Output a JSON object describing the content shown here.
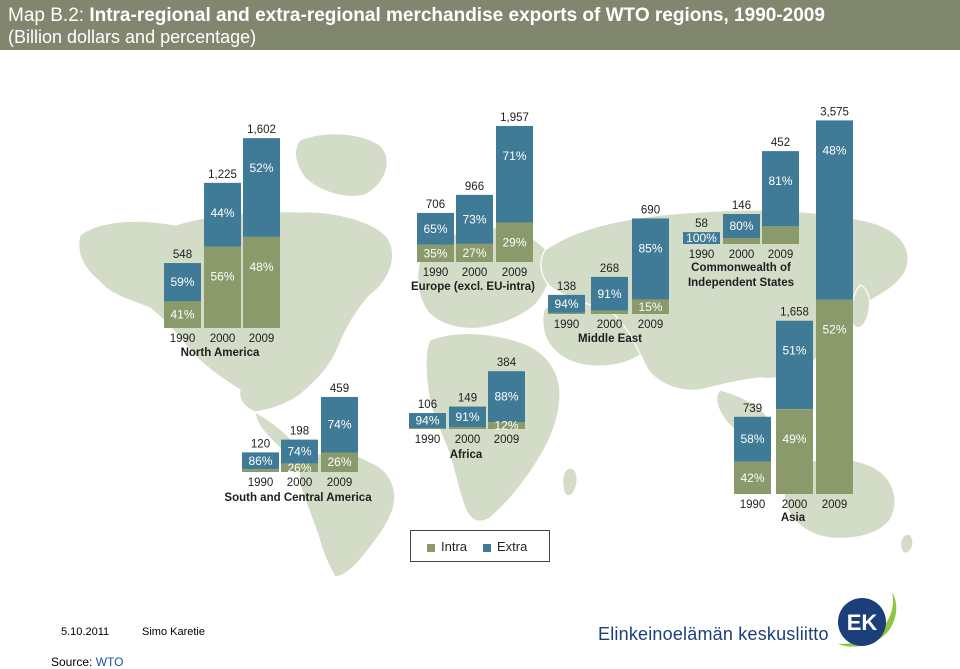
{
  "title": {
    "line1_prefix": "Map B.2: ",
    "line1_main": "Intra-regional and extra-regional merchandise exports of WTO regions, 1990-2009",
    "line2": "(Billion dollars and percentage)"
  },
  "colors": {
    "intra": "#8a9a6b",
    "extra": "#3f7a96",
    "land": "#d3dcc6",
    "header": "#80876e"
  },
  "chart_data": {
    "type": "bar",
    "stacked": true,
    "series_names": [
      "Intra",
      "Extra"
    ],
    "regions": [
      {
        "name": "North America",
        "categories": [
          "1990",
          "2000",
          "2009"
        ],
        "totals": [
          "548",
          "1,225",
          "1,602"
        ],
        "total_values": [
          548,
          1225,
          1602
        ],
        "intra": [
          41,
          56,
          48
        ],
        "extra": [
          59,
          44,
          52
        ],
        "labels_intra": [
          "41%",
          "56%",
          "48%"
        ],
        "labels_extra": [
          "59%",
          "44%",
          "52%"
        ]
      },
      {
        "name": "Europe (excl. EU-intra)",
        "categories": [
          "1990",
          "2000",
          "2009"
        ],
        "totals": [
          "706",
          "966",
          "1,957"
        ],
        "total_values": [
          706,
          966,
          1957
        ],
        "intra": [
          35,
          27,
          29
        ],
        "extra": [
          65,
          73,
          71
        ],
        "labels_intra": [
          "35%",
          "27%",
          "29%"
        ],
        "labels_extra": [
          "65%",
          "73%",
          "71%"
        ]
      },
      {
        "name": "Commonwealth of Independent States",
        "categories": [
          "1990",
          "2000",
          "2009"
        ],
        "totals": [
          "58",
          "146",
          "452"
        ],
        "total_values": [
          58,
          146,
          452
        ],
        "intra": [
          0,
          20,
          19
        ],
        "extra": [
          100,
          80,
          81
        ],
        "labels_intra": [
          "",
          "",
          ""
        ],
        "labels_extra": [
          "100%",
          "80%",
          "81%"
        ]
      },
      {
        "name": "Middle East",
        "categories": [
          "1990",
          "2000",
          "2009"
        ],
        "totals": [
          "138",
          "268",
          "690"
        ],
        "total_values": [
          138,
          268,
          690
        ],
        "intra": [
          6,
          9,
          15
        ],
        "extra": [
          94,
          91,
          85
        ],
        "labels_intra": [
          "",
          "",
          "15%"
        ],
        "labels_extra": [
          "94%",
          "91%",
          "85%"
        ]
      },
      {
        "name": "South and Central America",
        "categories": [
          "1990",
          "2000",
          "2009"
        ],
        "totals": [
          "120",
          "198",
          "459"
        ],
        "total_values": [
          120,
          198,
          459
        ],
        "intra": [
          14,
          26,
          26
        ],
        "extra": [
          86,
          74,
          74
        ],
        "labels_intra": [
          "",
          "26%",
          "26%"
        ],
        "labels_extra": [
          "86%",
          "74%",
          "74%"
        ]
      },
      {
        "name": "Africa",
        "categories": [
          "1990",
          "2000",
          "2009"
        ],
        "totals": [
          "106",
          "149",
          "384"
        ],
        "total_values": [
          106,
          149,
          384
        ],
        "intra": [
          6,
          9,
          12
        ],
        "extra": [
          94,
          91,
          88
        ],
        "labels_intra": [
          "",
          "",
          "12%"
        ],
        "labels_extra": [
          "94%",
          "91%",
          "88%"
        ]
      },
      {
        "name": "Asia",
        "categories": [
          "1990",
          "2000",
          "2009"
        ],
        "totals": [
          "739",
          "1,658",
          "3,575"
        ],
        "total_values": [
          739,
          1658,
          3575
        ],
        "intra": [
          42,
          49,
          52
        ],
        "extra": [
          58,
          51,
          48
        ],
        "labels_intra": [
          "42%",
          "49%",
          "52%"
        ],
        "labels_extra": [
          "58%",
          "51%",
          "48%"
        ]
      }
    ],
    "legend": [
      "Intra",
      "Extra"
    ]
  },
  "footer": {
    "date": "5.10.2011",
    "author": "Simo Karetie",
    "source_prefix": "Source: ",
    "source_name": "WTO",
    "org_name": "Elinkeinoelämän keskusliitto",
    "logo_text": "EK"
  }
}
